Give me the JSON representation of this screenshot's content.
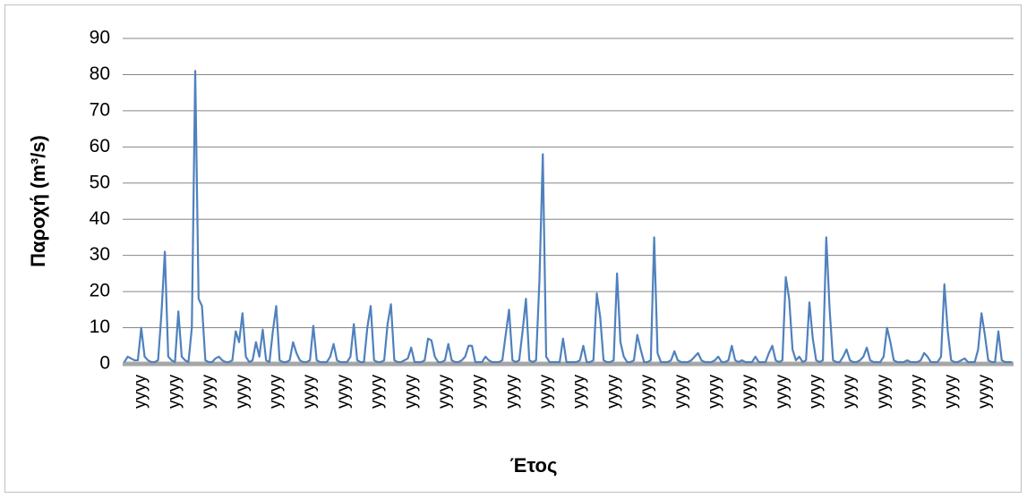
{
  "chart_data": {
    "type": "line",
    "x_label": "Έτος",
    "y_label": "Παροχή (m³/s)",
    "color": "#4f81bd",
    "grid": true,
    "ylim": [
      0,
      90
    ],
    "yticks": [
      0,
      10,
      20,
      30,
      40,
      50,
      60,
      70,
      80,
      90
    ],
    "categories": [
      null,
      null,
      null,
      null,
      null,
      "yyyy",
      null,
      null,
      null,
      null,
      null,
      null,
      null,
      null,
      null,
      "yyyy",
      null,
      null,
      null,
      null,
      null,
      null,
      null,
      null,
      null,
      "yyyy",
      null,
      null,
      null,
      null,
      null,
      null,
      null,
      null,
      null,
      "yyyy",
      null,
      null,
      null,
      null,
      null,
      null,
      null,
      null,
      null,
      "yyyy",
      null,
      null,
      null,
      null,
      null,
      null,
      null,
      null,
      null,
      "yyyy",
      null,
      null,
      null,
      null,
      null,
      null,
      null,
      null,
      null,
      "yyyy",
      null,
      null,
      null,
      null,
      null,
      null,
      null,
      null,
      null,
      "yyyy",
      null,
      null,
      null,
      null,
      null,
      null,
      null,
      null,
      null,
      "yyyy",
      null,
      null,
      null,
      null,
      null,
      null,
      null,
      null,
      null,
      "yyyy",
      null,
      null,
      null,
      null,
      null,
      null,
      null,
      null,
      null,
      "yyyy",
      null,
      null,
      null,
      null,
      null,
      null,
      null,
      null,
      null,
      "yyyy",
      null,
      null,
      null,
      null,
      null,
      null,
      null,
      null,
      null,
      "yyyy",
      null,
      null,
      null,
      null,
      null,
      null,
      null,
      null,
      null,
      "yyyy",
      null,
      null,
      null,
      null,
      null,
      null,
      null,
      null,
      null,
      "yyyy",
      null,
      null,
      null,
      null,
      null,
      null,
      null,
      null,
      null,
      "yyyy",
      null,
      null,
      null,
      null,
      null,
      null,
      null,
      null,
      null,
      "yyyy",
      null,
      null,
      null,
      null,
      null,
      null,
      null,
      null,
      null,
      "yyyy",
      null,
      null,
      null,
      null,
      null,
      null,
      null,
      null,
      null,
      "yyyy",
      null,
      null,
      null,
      null,
      null,
      null,
      null,
      null,
      null,
      "yyyy",
      null,
      null,
      null,
      null,
      null,
      null,
      null,
      null,
      null,
      "yyyy",
      null,
      null,
      null,
      null,
      null,
      null,
      null,
      null,
      null,
      "yyyy",
      null,
      null,
      null,
      null,
      null,
      null,
      null,
      null,
      null,
      "yyyy",
      null,
      null,
      null,
      null,
      null,
      null,
      null,
      null,
      null,
      "yyyy",
      null,
      null,
      null,
      null,
      null,
      null,
      null,
      null,
      null,
      "yyyy",
      null,
      null,
      null,
      null,
      null,
      null,
      null,
      null,
      null,
      "yyyy",
      null,
      null,
      null,
      null,
      null,
      null,
      null,
      null
    ],
    "values": [
      0.5,
      2,
      1.5,
      1,
      1,
      10,
      2,
      1,
      0.5,
      0.5,
      1,
      14,
      31,
      2,
      1,
      0.5,
      14.5,
      2,
      1,
      0.5,
      10,
      81,
      18,
      16,
      1,
      0.5,
      0.5,
      1.5,
      2,
      1,
      0.5,
      0.5,
      1,
      9,
      6,
      14,
      2,
      0.5,
      1,
      6,
      2,
      9.5,
      1,
      0.5,
      9,
      16,
      1,
      0.5,
      0.5,
      1,
      6,
      3,
      1,
      0.5,
      0.5,
      1,
      10.5,
      1,
      0.5,
      0.5,
      0.5,
      2,
      5.5,
      1,
      0.5,
      0.5,
      0.5,
      2,
      11,
      1,
      0.5,
      0.5,
      10,
      16,
      1,
      0.5,
      0.5,
      1,
      11,
      16.5,
      1,
      0.5,
      0.5,
      1,
      1.5,
      4.5,
      0.5,
      0.5,
      0.5,
      1,
      7,
      6.5,
      2,
      0.5,
      0.5,
      1,
      5.5,
      1,
      0.5,
      0.5,
      1,
      2,
      5,
      5,
      0.5,
      0.5,
      0.5,
      2,
      1,
      0.5,
      0.5,
      0.5,
      1,
      8,
      15,
      1,
      0.5,
      1,
      9,
      18,
      1,
      0.5,
      1,
      23,
      58,
      2,
      0.5,
      0.5,
      0.5,
      0.5,
      7,
      0.5,
      0.5,
      0.5,
      0.5,
      1,
      5,
      0.5,
      0.5,
      1,
      19.5,
      13,
      1,
      0.5,
      0.5,
      1,
      25,
      6,
      2,
      0.5,
      0.5,
      1,
      8,
      4,
      0.5,
      0.5,
      1,
      35,
      3,
      0.5,
      0.5,
      0.5,
      1,
      3.5,
      1,
      0.5,
      0.5,
      0.5,
      1,
      2,
      3,
      1,
      0.5,
      0.5,
      0.5,
      1,
      2,
      0.5,
      0.5,
      1,
      5,
      1,
      0.5,
      1,
      0.5,
      0.5,
      0.5,
      2,
      0.5,
      0.5,
      0.5,
      3,
      5,
      1,
      0.5,
      1,
      24,
      18,
      4,
      1,
      2,
      0.5,
      1,
      17,
      7,
      1,
      0.5,
      1,
      35,
      15,
      1,
      0.5,
      0.5,
      2,
      4,
      1,
      0.5,
      0.5,
      1,
      2,
      4.5,
      1,
      0.5,
      0.5,
      0.5,
      2,
      10,
      6,
      1,
      0.5,
      0.5,
      0.5,
      1,
      0.5,
      0.5,
      0.5,
      1,
      3,
      2,
      0.5,
      0.5,
      0.5,
      2,
      22,
      9,
      1,
      0.5,
      0.5,
      1,
      1.5,
      0.5,
      0.5,
      0.5,
      4,
      14,
      8,
      1,
      0.5,
      0.5,
      9,
      1,
      0.5,
      0.5,
      0.5
    ]
  }
}
